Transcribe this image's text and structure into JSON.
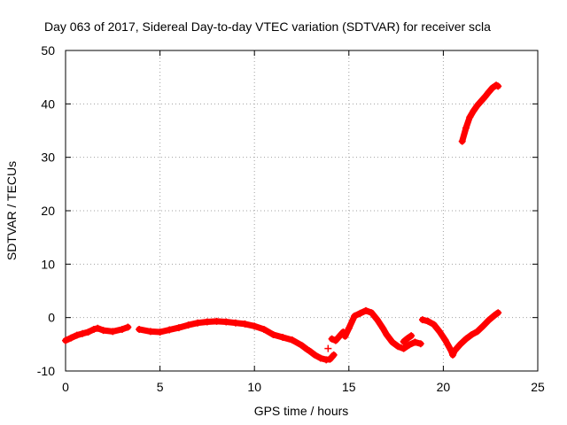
{
  "chart_data": {
    "type": "scatter",
    "title": "Day 063 of 2017, Sidereal Day-to-day VTEC variation (SDTVAR) for receiver scla",
    "xlabel": "GPS time / hours",
    "ylabel": "SDTVAR / TECUs",
    "xlim": [
      0,
      25
    ],
    "ylim": [
      -10,
      50
    ],
    "xticks": [
      0,
      5,
      10,
      15,
      20,
      25
    ],
    "yticks": [
      -10,
      0,
      10,
      20,
      30,
      40,
      50
    ],
    "grid": true,
    "marker": "+",
    "color": "#ff0000",
    "series": [
      {
        "name": "SDTVAR",
        "segments": [
          [
            [
              0.0,
              -4.3
            ],
            [
              0.3,
              -3.8
            ],
            [
              0.6,
              -3.3
            ],
            [
              0.9,
              -3.0
            ],
            [
              1.2,
              -2.7
            ],
            [
              1.5,
              -2.2
            ],
            [
              1.7,
              -2.0
            ],
            [
              2.0,
              -2.4
            ],
            [
              2.5,
              -2.6
            ],
            [
              3.0,
              -2.2
            ],
            [
              3.3,
              -1.8
            ]
          ],
          [
            [
              3.9,
              -2.2
            ],
            [
              4.5,
              -2.6
            ],
            [
              5.0,
              -2.7
            ],
            [
              5.5,
              -2.3
            ],
            [
              6.0,
              -1.9
            ],
            [
              6.5,
              -1.4
            ],
            [
              7.0,
              -1.0
            ],
            [
              7.5,
              -0.8
            ],
            [
              8.0,
              -0.7
            ],
            [
              8.5,
              -0.8
            ],
            [
              9.0,
              -1.0
            ],
            [
              9.5,
              -1.2
            ],
            [
              10.0,
              -1.6
            ],
            [
              10.5,
              -2.2
            ],
            [
              11.0,
              -3.2
            ],
            [
              11.5,
              -3.7
            ],
            [
              12.0,
              -4.2
            ],
            [
              12.5,
              -5.2
            ],
            [
              12.8,
              -6.0
            ]
          ],
          [
            [
              12.9,
              -6.2
            ],
            [
              13.2,
              -7.0
            ],
            [
              13.5,
              -7.6
            ],
            [
              13.8,
              -7.9
            ],
            [
              14.0,
              -7.8
            ],
            [
              14.2,
              -7.0
            ]
          ],
          [
            [
              13.9,
              -5.8
            ]
          ],
          [
            [
              14.1,
              -4.0
            ],
            [
              14.3,
              -4.3
            ],
            [
              14.5,
              -3.5
            ],
            [
              14.7,
              -2.7
            ]
          ],
          [
            [
              14.8,
              -3.5
            ],
            [
              15.0,
              -2.0
            ],
            [
              15.3,
              0.3
            ],
            [
              15.6,
              0.8
            ],
            [
              15.9,
              1.3
            ],
            [
              16.2,
              0.9
            ],
            [
              16.5,
              -0.4
            ],
            [
              16.8,
              -2.0
            ],
            [
              17.0,
              -3.2
            ],
            [
              17.3,
              -4.6
            ],
            [
              17.6,
              -5.4
            ],
            [
              17.9,
              -5.8
            ],
            [
              18.2,
              -5.1
            ],
            [
              18.5,
              -4.6
            ],
            [
              18.8,
              -4.9
            ]
          ],
          [
            [
              17.9,
              -4.5
            ],
            [
              18.1,
              -3.9
            ],
            [
              18.3,
              -3.4
            ]
          ],
          [
            [
              18.9,
              -0.4
            ],
            [
              19.2,
              -0.7
            ],
            [
              19.5,
              -1.3
            ],
            [
              19.8,
              -2.6
            ],
            [
              20.1,
              -4.2
            ],
            [
              20.4,
              -6.1
            ],
            [
              20.5,
              -7.0
            ],
            [
              20.6,
              -6.2
            ],
            [
              20.9,
              -5.0
            ],
            [
              21.2,
              -4.0
            ],
            [
              21.5,
              -3.2
            ],
            [
              21.8,
              -2.6
            ],
            [
              22.1,
              -1.6
            ],
            [
              22.4,
              -0.5
            ],
            [
              22.7,
              0.4
            ],
            [
              22.9,
              0.9
            ]
          ],
          [
            [
              21.0,
              33.0
            ],
            [
              21.2,
              35.5
            ],
            [
              21.4,
              37.5
            ],
            [
              21.6,
              38.7
            ],
            [
              21.8,
              39.7
            ],
            [
              22.0,
              40.5
            ],
            [
              22.2,
              41.3
            ],
            [
              22.4,
              42.2
            ],
            [
              22.6,
              43.0
            ],
            [
              22.8,
              43.5
            ],
            [
              22.9,
              43.3
            ]
          ]
        ]
      }
    ]
  }
}
